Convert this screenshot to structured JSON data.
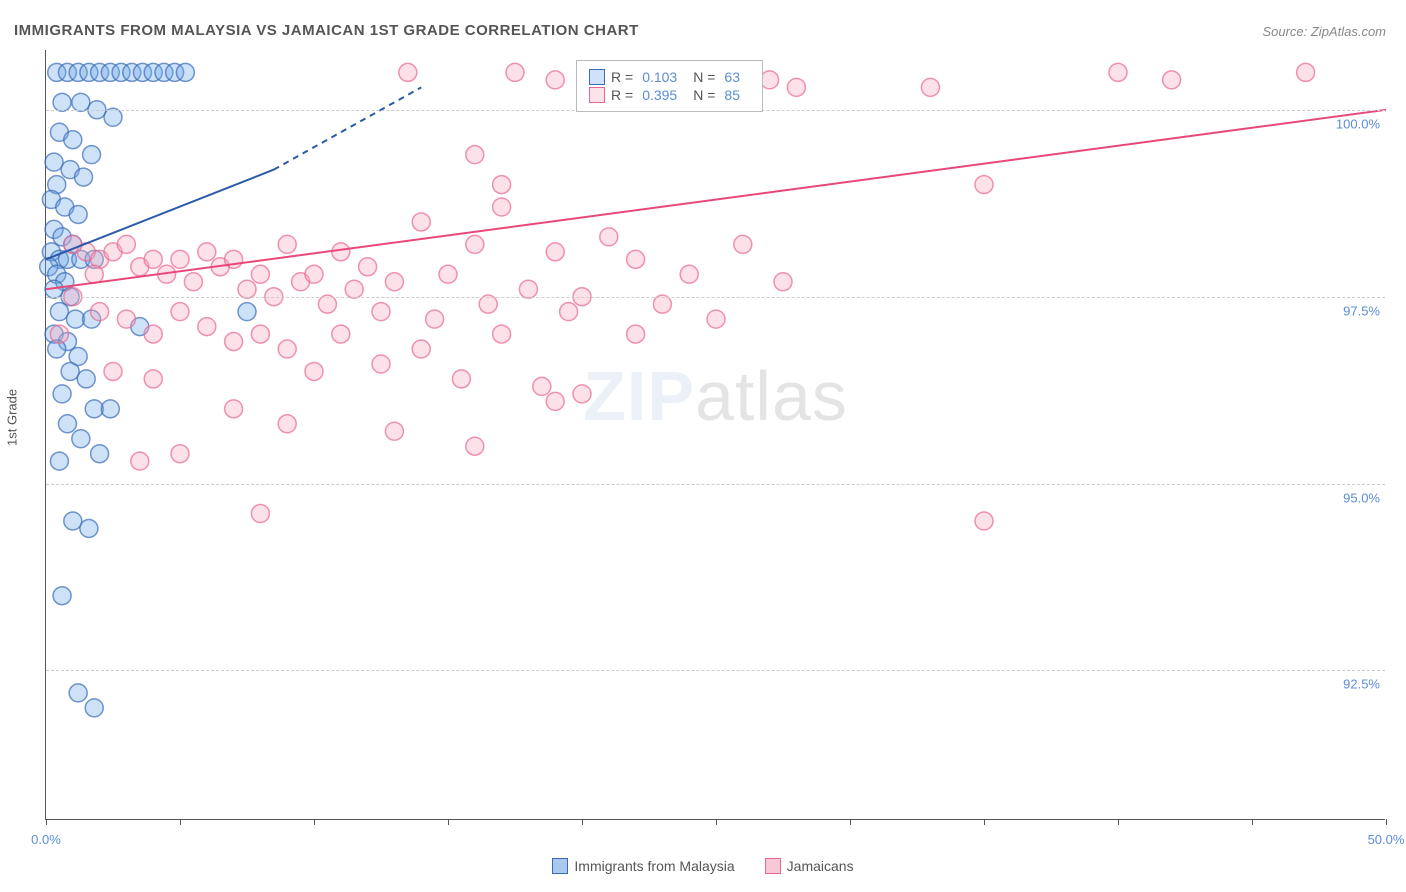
{
  "title": "IMMIGRANTS FROM MALAYSIA VS JAMAICAN 1ST GRADE CORRELATION CHART",
  "source": "Source: ZipAtlas.com",
  "ylabel": "1st Grade",
  "watermark_zip": "ZIP",
  "watermark_atlas": "atlas",
  "chart": {
    "type": "scatter",
    "xlim": [
      0,
      50
    ],
    "ylim": [
      90.5,
      100.8
    ],
    "xtick_positions": [
      0,
      5,
      10,
      15,
      20,
      25,
      30,
      35,
      40,
      45,
      50
    ],
    "xtick_labels": {
      "0": "0.0%",
      "50": "50.0%"
    },
    "ytick_positions": [
      92.5,
      95.0,
      97.5,
      100.0
    ],
    "ytick_labels": [
      "92.5%",
      "95.0%",
      "97.5%",
      "100.0%"
    ],
    "background_color": "#ffffff",
    "grid_color": "#cccccc",
    "axis_color": "#555555",
    "marker_radius": 9,
    "marker_opacity": 0.35,
    "marker_stroke_width": 1.5,
    "series": [
      {
        "name": "Immigrants from Malaysia",
        "color_fill": "#6fa8e8",
        "color_stroke": "#3a6bb8",
        "R": "0.103",
        "N": "63",
        "trend": {
          "x1": 0,
          "y1": 98.0,
          "x2": 8.5,
          "y2": 99.2,
          "dash_x2": 14.0,
          "dash_y2": 100.3,
          "stroke": "#2a5aa8",
          "width": 2
        },
        "points": [
          [
            0.4,
            100.5
          ],
          [
            0.8,
            100.5
          ],
          [
            1.2,
            100.5
          ],
          [
            1.6,
            100.5
          ],
          [
            2.0,
            100.5
          ],
          [
            2.4,
            100.5
          ],
          [
            2.8,
            100.5
          ],
          [
            3.2,
            100.5
          ],
          [
            3.6,
            100.5
          ],
          [
            4.0,
            100.5
          ],
          [
            4.4,
            100.5
          ],
          [
            4.8,
            100.5
          ],
          [
            5.2,
            100.5
          ],
          [
            0.6,
            100.1
          ],
          [
            1.3,
            100.1
          ],
          [
            1.9,
            100.0
          ],
          [
            2.5,
            99.9
          ],
          [
            0.5,
            99.7
          ],
          [
            1.0,
            99.6
          ],
          [
            1.7,
            99.4
          ],
          [
            0.3,
            99.3
          ],
          [
            0.9,
            99.2
          ],
          [
            1.4,
            99.1
          ],
          [
            0.4,
            99.0
          ],
          [
            0.2,
            98.8
          ],
          [
            0.7,
            98.7
          ],
          [
            1.2,
            98.6
          ],
          [
            0.3,
            98.4
          ],
          [
            0.6,
            98.3
          ],
          [
            1.0,
            98.2
          ],
          [
            0.2,
            98.1
          ],
          [
            0.5,
            98.0
          ],
          [
            0.8,
            98.0
          ],
          [
            1.3,
            98.0
          ],
          [
            1.8,
            98.0
          ],
          [
            0.1,
            97.9
          ],
          [
            0.4,
            97.8
          ],
          [
            0.7,
            97.7
          ],
          [
            0.3,
            97.6
          ],
          [
            0.9,
            97.5
          ],
          [
            0.5,
            97.3
          ],
          [
            1.1,
            97.2
          ],
          [
            1.7,
            97.2
          ],
          [
            0.3,
            97.0
          ],
          [
            0.8,
            96.9
          ],
          [
            0.4,
            96.8
          ],
          [
            1.2,
            96.7
          ],
          [
            0.9,
            96.5
          ],
          [
            1.5,
            96.4
          ],
          [
            0.6,
            96.2
          ],
          [
            1.8,
            96.0
          ],
          [
            2.4,
            96.0
          ],
          [
            0.8,
            95.8
          ],
          [
            1.3,
            95.6
          ],
          [
            2.0,
            95.4
          ],
          [
            0.5,
            95.3
          ],
          [
            1.0,
            94.5
          ],
          [
            1.6,
            94.4
          ],
          [
            0.6,
            93.5
          ],
          [
            1.2,
            92.2
          ],
          [
            1.8,
            92.0
          ],
          [
            7.5,
            97.3
          ],
          [
            3.5,
            97.1
          ]
        ]
      },
      {
        "name": "Jamaicans",
        "color_fill": "#f5a8bd",
        "color_stroke": "#e86890",
        "R": "0.395",
        "N": "85",
        "trend": {
          "x1": 0,
          "y1": 97.6,
          "x2": 50,
          "y2": 100.0,
          "stroke": "#e84878",
          "width": 2
        },
        "points": [
          [
            1.0,
            98.2
          ],
          [
            1.5,
            98.1
          ],
          [
            2.0,
            98.0
          ],
          [
            2.5,
            98.1
          ],
          [
            3.0,
            98.2
          ],
          [
            3.5,
            97.9
          ],
          [
            4.0,
            98.0
          ],
          [
            4.5,
            97.8
          ],
          [
            5.0,
            98.0
          ],
          [
            5.5,
            97.7
          ],
          [
            6.0,
            98.1
          ],
          [
            6.5,
            97.9
          ],
          [
            7.0,
            98.0
          ],
          [
            7.5,
            97.6
          ],
          [
            8.0,
            97.8
          ],
          [
            8.5,
            97.5
          ],
          [
            9.0,
            98.2
          ],
          [
            9.5,
            97.7
          ],
          [
            10.0,
            97.8
          ],
          [
            10.5,
            97.4
          ],
          [
            11.0,
            98.1
          ],
          [
            11.5,
            97.6
          ],
          [
            12.0,
            97.9
          ],
          [
            12.5,
            97.3
          ],
          [
            13.0,
            97.7
          ],
          [
            14.0,
            98.5
          ],
          [
            14.5,
            97.2
          ],
          [
            15.0,
            97.8
          ],
          [
            16.0,
            98.2
          ],
          [
            16.5,
            97.4
          ],
          [
            17.0,
            99.0
          ],
          [
            18.0,
            97.6
          ],
          [
            19.0,
            98.1
          ],
          [
            19.5,
            97.3
          ],
          [
            20.0,
            97.5
          ],
          [
            21.0,
            98.3
          ],
          [
            22.0,
            98.0
          ],
          [
            23.0,
            97.4
          ],
          [
            24.0,
            97.8
          ],
          [
            25.0,
            97.2
          ],
          [
            13.5,
            100.5
          ],
          [
            17.5,
            100.5
          ],
          [
            19.0,
            100.4
          ],
          [
            16.0,
            99.4
          ],
          [
            17.0,
            98.7
          ],
          [
            27.0,
            100.4
          ],
          [
            28.0,
            100.3
          ],
          [
            27.5,
            97.7
          ],
          [
            33.0,
            100.3
          ],
          [
            35.0,
            99.0
          ],
          [
            40.0,
            100.5
          ],
          [
            42.0,
            100.4
          ],
          [
            47.0,
            100.5
          ],
          [
            2.0,
            97.3
          ],
          [
            3.0,
            97.2
          ],
          [
            4.0,
            97.0
          ],
          [
            5.0,
            97.3
          ],
          [
            6.0,
            97.1
          ],
          [
            7.0,
            96.9
          ],
          [
            8.0,
            97.0
          ],
          [
            9.0,
            96.8
          ],
          [
            10.0,
            96.5
          ],
          [
            11.0,
            97.0
          ],
          [
            12.5,
            96.6
          ],
          [
            14.0,
            96.8
          ],
          [
            15.5,
            96.4
          ],
          [
            17.0,
            97.0
          ],
          [
            18.5,
            96.3
          ],
          [
            20.0,
            96.2
          ],
          [
            4.0,
            96.4
          ],
          [
            7.0,
            96.0
          ],
          [
            9.0,
            95.8
          ],
          [
            13.0,
            95.7
          ],
          [
            16.0,
            95.5
          ],
          [
            19.0,
            96.1
          ],
          [
            22.0,
            97.0
          ],
          [
            3.5,
            95.3
          ],
          [
            5.0,
            95.4
          ],
          [
            8.0,
            94.6
          ],
          [
            2.5,
            96.5
          ],
          [
            1.0,
            97.5
          ],
          [
            1.8,
            97.8
          ],
          [
            0.5,
            97.0
          ],
          [
            35.0,
            94.5
          ],
          [
            26.0,
            98.2
          ]
        ]
      }
    ],
    "legend_top": {
      "R_label": "R =",
      "N_label": "N ="
    },
    "legend_bottom": [
      {
        "label": "Immigrants from Malaysia",
        "fill": "#a8c8f0",
        "stroke": "#3a6bb8"
      },
      {
        "label": "Jamaicans",
        "fill": "#f8c8d5",
        "stroke": "#e86890"
      }
    ]
  }
}
